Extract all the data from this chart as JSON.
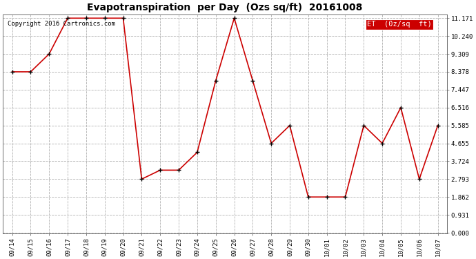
{
  "title": "Evapotranspiration  per Day  (Ozs sq/ft)  20161008",
  "copyright_text": "Copyright 2016 Cartronics.com",
  "legend_label": "ET  (0z/sq  ft)",
  "x_labels": [
    "09/14",
    "09/15",
    "09/16",
    "09/17",
    "09/18",
    "09/19",
    "09/20",
    "09/21",
    "09/22",
    "09/23",
    "09/24",
    "09/25",
    "09/26",
    "09/27",
    "09/28",
    "09/29",
    "09/30",
    "10/01",
    "10/02",
    "10/03",
    "10/04",
    "10/05",
    "10/06",
    "10/07"
  ],
  "y_values": [
    8.378,
    8.378,
    9.309,
    11.171,
    11.171,
    11.171,
    11.171,
    2.793,
    3.259,
    3.259,
    4.189,
    7.912,
    11.171,
    7.912,
    4.655,
    5.585,
    1.862,
    1.862,
    1.862,
    5.585,
    4.655,
    6.516,
    2.793,
    5.585
  ],
  "y_ticks": [
    0.0,
    0.931,
    1.862,
    2.793,
    3.724,
    4.655,
    5.585,
    6.516,
    7.447,
    8.378,
    9.309,
    10.24,
    11.171
  ],
  "line_color": "#cc0000",
  "marker_color": "#000000",
  "background_color": "#ffffff",
  "grid_color": "#b0b0b0",
  "legend_bg_color": "#cc0000",
  "legend_text_color": "#ffffff",
  "title_fontsize": 10,
  "copyright_fontsize": 6.5,
  "tick_fontsize": 6.5,
  "legend_fontsize": 7.5,
  "ylim_min": 0.0,
  "ylim_max": 11.171,
  "line_width": 1.2,
  "marker_size": 5
}
